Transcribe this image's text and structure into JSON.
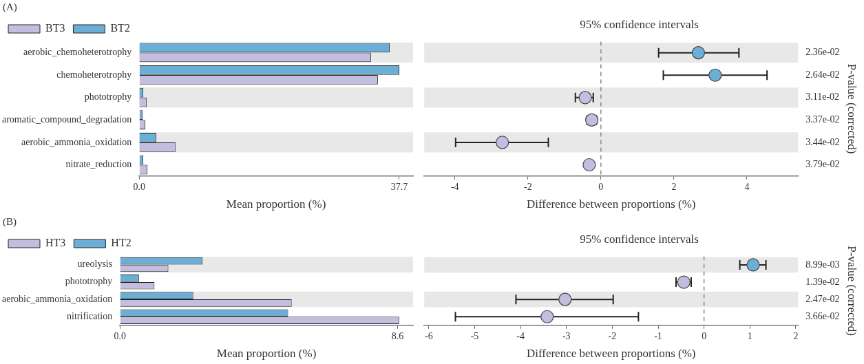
{
  "chart_data": [
    {
      "type": "bar",
      "orientation": "horizontal",
      "annotations": [
        "(A)"
      ],
      "legend": "top left",
      "grid": false,
      "xlabel": "Mean proportion (%)",
      "xlim": [
        0,
        39.7
      ],
      "xticks": [
        {
          "value": 0,
          "label": "0.0"
        },
        37.7
      ],
      "categories": [
        "aerobic_chemoheterotrophy",
        "chemoheterotrophy",
        "phototrophy",
        "aromatic_compound_degradation",
        "aerobic_ammonia_oxidation",
        "nitrate_reduction"
      ],
      "series": [
        {
          "name": "BT2",
          "color": "#6baed6",
          "values": [
            36.3,
            37.7,
            0.6,
            0.5,
            2.5,
            0.6
          ]
        },
        {
          "name": "BT3",
          "color": "#c4bde0",
          "values": [
            33.6,
            34.6,
            1.1,
            0.9,
            5.3,
            1.2
          ]
        }
      ],
      "bands": [
        {
          "axis": "y",
          "from": "aerobic_chemoheterotrophy",
          "to": "aerobic_chemoheterotrophy",
          "color": "#e8e8e8"
        },
        {
          "axis": "y",
          "from": "phototrophy",
          "to": "phototrophy",
          "color": "#e8e8e8"
        },
        {
          "axis": "y",
          "from": "aerobic_ammonia_oxidation",
          "to": "aerobic_ammonia_oxidation",
          "color": "#e8e8e8"
        }
      ]
    },
    {
      "type": "scatter",
      "orientation": "horizontal",
      "title": "95% confidence intervals",
      "xlabel": "Difference between proportions (%)",
      "y2label": "P-value (corrected)",
      "marker": "circle",
      "tick_labels": "x",
      "categories": [
        "aerobic_chemoheterotrophy",
        "chemoheterotrophy",
        "phototrophy",
        "aromatic_compound_degradation",
        "aerobic_ammonia_oxidation",
        "nitrate_reduction"
      ],
      "y2_categories": [
        "2.36e-02",
        "2.64e-02",
        "3.11e-02",
        "3.37e-02",
        "3.44e-02",
        "3.79e-02"
      ],
      "values": [
        2.67,
        3.13,
        -0.43,
        -0.25,
        -2.7,
        -0.32
      ],
      "colors": [
        "#6baed6",
        "#6baed6",
        "#c4bde0",
        "#c4bde0",
        "#c4bde0",
        "#c4bde0"
      ],
      "errors": [
        [
          1.58,
          3.78
        ],
        [
          1.71,
          4.55
        ],
        [
          -0.7,
          -0.21
        ],
        [
          -0.38,
          -0.12
        ],
        [
          -3.98,
          -1.44
        ],
        null
      ],
      "xlim": [
        -4.84,
        5.4
      ],
      "xticks": [
        -4,
        -2,
        0,
        2,
        4
      ],
      "ref_lines": [
        {
          "axis": "x",
          "value": 0,
          "color": "#888888",
          "line_style": "dashed"
        }
      ],
      "bands": [
        {
          "axis": "y",
          "from": "aerobic_chemoheterotrophy",
          "to": "aerobic_chemoheterotrophy",
          "color": "#e8e8e8"
        },
        {
          "axis": "y",
          "from": "phototrophy",
          "to": "phototrophy",
          "color": "#e8e8e8"
        },
        {
          "axis": "y",
          "from": "aerobic_ammonia_oxidation",
          "to": "aerobic_ammonia_oxidation",
          "color": "#e8e8e8"
        }
      ]
    },
    {
      "type": "bar",
      "orientation": "horizontal",
      "annotations": [
        "(B)"
      ],
      "legend": "top left",
      "grid": false,
      "xlabel": "Mean proportion (%)",
      "xlim": [
        0,
        9.08
      ],
      "xticks": [
        {
          "value": 0,
          "label": "0.0"
        },
        8.6
      ],
      "categories": [
        "ureolysis",
        "phototrophy",
        "aerobic_ammonia_oxidation",
        "nitrification"
      ],
      "series": [
        {
          "name": "HT2",
          "color": "#6baed6",
          "values": [
            2.56,
            0.59,
            2.27,
            5.21
          ]
        },
        {
          "name": "HT3",
          "color": "#c4bde0",
          "values": [
            1.5,
            1.07,
            5.32,
            8.65
          ]
        }
      ],
      "bands": [
        {
          "axis": "y",
          "from": "ureolysis",
          "to": "ureolysis",
          "color": "#e8e8e8"
        },
        {
          "axis": "y",
          "from": "aerobic_ammonia_oxidation",
          "to": "aerobic_ammonia_oxidation",
          "color": "#e8e8e8"
        }
      ]
    },
    {
      "type": "scatter",
      "orientation": "horizontal",
      "title": "95% confidence intervals",
      "xlabel": "Difference between proportions (%)",
      "y2label": "P-value (corrected)",
      "marker": "circle",
      "tick_labels": "x",
      "categories": [
        "ureolysis",
        "phototrophy",
        "aerobic_ammonia_oxidation",
        "nitrification"
      ],
      "y2_categories": [
        "8.99e-03",
        "1.39e-02",
        "2.47e-02",
        "3.66e-02"
      ],
      "values": [
        1.07,
        -0.44,
        -3.03,
        -3.42
      ],
      "colors": [
        "#6baed6",
        "#c4bde0",
        "#c4bde0",
        "#c4bde0"
      ],
      "errors": [
        [
          0.78,
          1.35
        ],
        [
          -0.61,
          -0.28
        ],
        [
          -4.1,
          -1.98
        ],
        [
          -5.42,
          -1.43
        ]
      ],
      "xlim": [
        -6.1,
        2.05
      ],
      "xticks": [
        -6,
        -5,
        -4,
        -3,
        -2,
        -1,
        0,
        1,
        2
      ],
      "ref_lines": [
        {
          "axis": "x",
          "value": 0,
          "color": "#888888",
          "line_style": "dashed"
        }
      ],
      "bands": [
        {
          "axis": "y",
          "from": "ureolysis",
          "to": "ureolysis",
          "color": "#e8e8e8"
        },
        {
          "axis": "y",
          "from": "aerobic_ammonia_oxidation",
          "to": "aerobic_ammonia_oxidation",
          "color": "#e8e8e8"
        }
      ]
    }
  ]
}
